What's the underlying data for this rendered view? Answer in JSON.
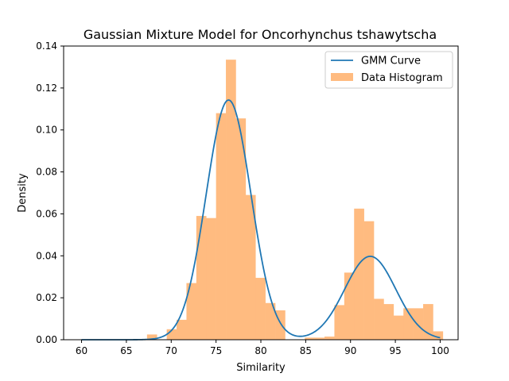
{
  "chart_data": {
    "type": "bar",
    "title": "Gaussian Mixture Model for Oncorhynchus tshawytscha",
    "xlabel": "Similarity",
    "ylabel": "Density",
    "xlim": [
      58.0,
      102.0
    ],
    "ylim": [
      0.0,
      0.14
    ],
    "xticks": [
      60,
      65,
      70,
      75,
      80,
      85,
      90,
      95,
      100
    ],
    "xtick_labels": [
      "60",
      "65",
      "70",
      "75",
      "80",
      "85",
      "90",
      "95",
      "100"
    ],
    "yticks": [
      0.0,
      0.02,
      0.04,
      0.06,
      0.08,
      0.1,
      0.12,
      0.14
    ],
    "ytick_labels": [
      "0.00",
      "0.02",
      "0.04",
      "0.06",
      "0.08",
      "0.10",
      "0.12",
      "0.14"
    ],
    "grid": false,
    "legend_position": "top-right",
    "series": [
      {
        "name": "GMM Curve",
        "kind": "line",
        "color": "#1f77b4",
        "components": [
          {
            "weight": 0.716,
            "mean": 76.4,
            "std": 2.5
          },
          {
            "weight": 0.284,
            "mean": 92.2,
            "std": 2.85
          }
        ],
        "x_range": [
          60,
          100
        ]
      },
      {
        "name": "Data Histogram",
        "kind": "histogram",
        "color": "#ffbb80",
        "bin_width": 1.1,
        "bins": [
          {
            "x0": 67.3,
            "x1": 68.4,
            "value": 0.0025
          },
          {
            "x0": 68.4,
            "x1": 69.5,
            "value": 0.0
          },
          {
            "x0": 69.5,
            "x1": 70.6,
            "value": 0.005
          },
          {
            "x0": 70.6,
            "x1": 71.7,
            "value": 0.0095
          },
          {
            "x0": 71.7,
            "x1": 72.8,
            "value": 0.027
          },
          {
            "x0": 72.8,
            "x1": 73.9,
            "value": 0.059
          },
          {
            "x0": 73.9,
            "x1": 75.0,
            "value": 0.058
          },
          {
            "x0": 75.0,
            "x1": 76.1,
            "value": 0.108
          },
          {
            "x0": 76.1,
            "x1": 77.2,
            "value": 0.1335
          },
          {
            "x0": 77.2,
            "x1": 78.3,
            "value": 0.1055
          },
          {
            "x0": 78.3,
            "x1": 79.4,
            "value": 0.069
          },
          {
            "x0": 79.4,
            "x1": 80.5,
            "value": 0.0295
          },
          {
            "x0": 80.5,
            "x1": 81.6,
            "value": 0.0175
          },
          {
            "x0": 81.6,
            "x1": 82.7,
            "value": 0.014
          },
          {
            "x0": 82.7,
            "x1": 83.8,
            "value": 0.0
          },
          {
            "x0": 83.8,
            "x1": 84.9,
            "value": 0.0
          },
          {
            "x0": 84.9,
            "x1": 86.0,
            "value": 0.001
          },
          {
            "x0": 86.0,
            "x1": 87.1,
            "value": 0.001
          },
          {
            "x0": 87.1,
            "x1": 88.2,
            "value": 0.0015
          },
          {
            "x0": 88.2,
            "x1": 89.3,
            "value": 0.0165
          },
          {
            "x0": 89.3,
            "x1": 90.4,
            "value": 0.032
          },
          {
            "x0": 90.4,
            "x1": 91.5,
            "value": 0.0625
          },
          {
            "x0": 91.5,
            "x1": 92.6,
            "value": 0.0565
          },
          {
            "x0": 92.6,
            "x1": 93.7,
            "value": 0.0195
          },
          {
            "x0": 93.7,
            "x1": 94.8,
            "value": 0.017
          },
          {
            "x0": 94.8,
            "x1": 95.9,
            "value": 0.0115
          },
          {
            "x0": 95.9,
            "x1": 97.0,
            "value": 0.015
          },
          {
            "x0": 97.0,
            "x1": 98.1,
            "value": 0.015
          },
          {
            "x0": 98.1,
            "x1": 99.2,
            "value": 0.017
          },
          {
            "x0": 99.2,
            "x1": 100.3,
            "value": 0.004
          }
        ]
      }
    ]
  }
}
